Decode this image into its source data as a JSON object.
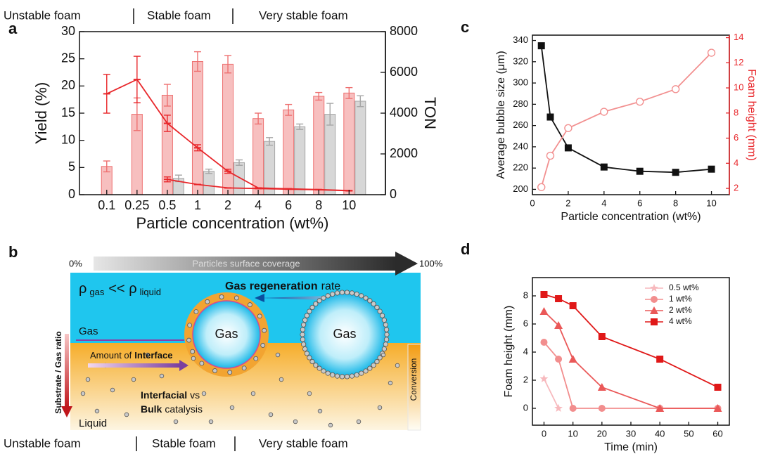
{
  "panel_labels": [
    "a",
    "b",
    "c",
    "d"
  ],
  "chart_data": [
    {
      "type": "bar_line",
      "annotations": [
        "Unstable foam",
        "Stable foam",
        "Very stable foam"
      ],
      "x_label": "Particle concentration (wt%)",
      "y_label": "Yield (%)",
      "y2_label": "TON",
      "categories": [
        "0.1",
        "0.25",
        "0.5",
        "1",
        "2",
        "4",
        "6",
        "8",
        "10"
      ],
      "ylim": [
        0,
        30
      ],
      "yticks": [
        0,
        5,
        10,
        15,
        20,
        25,
        30
      ],
      "y2lim": [
        0,
        8000
      ],
      "y2ticks": [
        0,
        2000,
        4000,
        6000,
        8000
      ],
      "series": [
        {
          "kind": "bar",
          "color": "#ee7070",
          "values": [
            5.2,
            14.8,
            18.3,
            24.5,
            24,
            14,
            15.6,
            18.1,
            18.7
          ],
          "errors": [
            1,
            3,
            2,
            1.8,
            1.6,
            1,
            1,
            0.7,
            1
          ]
        },
        {
          "kind": "bar",
          "color": "#a6a6a6",
          "values": [
            null,
            null,
            3.0,
            4.3,
            5.9,
            9.8,
            12.5,
            14.8,
            17.2
          ],
          "errors": [
            null,
            null,
            0.6,
            0.4,
            0.5,
            0.7,
            0.5,
            2,
            1
          ]
        },
        {
          "kind": "line",
          "axis": "y2",
          "color": "#e8262a",
          "marker": "dash",
          "values": [
            4950,
            5650,
            3500,
            2300,
            1150,
            330,
            290,
            250,
            200
          ],
          "errors": [
            950,
            1140,
            400,
            150,
            100,
            null,
            null,
            null,
            null
          ]
        },
        {
          "kind": "line",
          "axis": "y2",
          "color": "#e8262a",
          "marker": "dash",
          "values": [
            null,
            null,
            750,
            500,
            330,
            300,
            270,
            240,
            190
          ],
          "errors": [
            null,
            null,
            120,
            null,
            null,
            null,
            null,
            null,
            null
          ]
        }
      ]
    },
    {
      "type": "line",
      "x_label": "Particle concentration (wt%)",
      "y_label": "Average bubble size (μm)",
      "y2_label": "Foam height (mm)",
      "y2_color": "#e8262a",
      "x": [
        0.5,
        1,
        2,
        4,
        6,
        8,
        10
      ],
      "xlim": [
        0,
        11
      ],
      "xticks": [
        0,
        2,
        4,
        6,
        8,
        10
      ],
      "ylim": [
        195,
        345
      ],
      "yticks": [
        200,
        220,
        240,
        260,
        280,
        300,
        320,
        340
      ],
      "y2lim": [
        1.5,
        14.2
      ],
      "y2ticks": [
        2,
        4,
        6,
        8,
        10,
        12,
        14
      ],
      "series": [
        {
          "kind": "line",
          "color": "#111111",
          "marker": "square",
          "values": [
            335,
            268,
            239,
            221,
            217,
            216,
            219
          ]
        },
        {
          "kind": "line",
          "axis": "y2",
          "color": "#f29090",
          "marker": "circle-open",
          "values": [
            2.1,
            4.6,
            6.8,
            8.1,
            8.9,
            9.9,
            12.8
          ]
        }
      ]
    },
    {
      "type": "line",
      "x_label": "Time (min)",
      "y_label": "Foam height (mm)",
      "legend": "upper right",
      "x": [
        0,
        5,
        10,
        20,
        40,
        60
      ],
      "xlim": [
        -4,
        64
      ],
      "xticks": [
        0,
        10,
        20,
        30,
        40,
        50,
        60
      ],
      "ylim": [
        -1.2,
        9.3
      ],
      "yticks": [
        0,
        2,
        4,
        6,
        8
      ],
      "series": [
        {
          "name": "0.5 wt%",
          "kind": "line",
          "color": "#f7b9bd",
          "marker": "star",
          "values": [
            2.1,
            0,
            null,
            null,
            null,
            null
          ]
        },
        {
          "name": "1 wt%",
          "kind": "line",
          "color": "#f28e8e",
          "marker": "circle",
          "values": [
            4.7,
            3.5,
            0,
            0,
            0,
            0
          ]
        },
        {
          "name": "2 wt%",
          "kind": "line",
          "color": "#ea5858",
          "marker": "triangle",
          "values": [
            6.9,
            5.9,
            3.5,
            1.5,
            0,
            0
          ]
        },
        {
          "name": "4 wt%",
          "kind": "line",
          "color": "#e01818",
          "marker": "square",
          "values": [
            8.1,
            7.8,
            7.3,
            5.1,
            3.5,
            1.5
          ]
        }
      ]
    }
  ],
  "diagram": {
    "coverage": {
      "start": "0%",
      "title": "Particles surface coverage",
      "end": "100%"
    },
    "density": {
      "rho": "ρ",
      "gas": "gas",
      "relation": "<< ρ",
      "liquid": "liquid"
    },
    "regeneration": {
      "bold": "Gas regeneration",
      "rest": "rate"
    },
    "gas_label": "Gas",
    "bubbles": [
      "Gas",
      "Gas"
    ],
    "interface": {
      "text": "Amount of",
      "bold": "Interface"
    },
    "ratio": "Substrate / Gas ratio",
    "catalysis": {
      "bold1": "Interfacial",
      "text1": "vs",
      "bold2": "Bulk",
      "text2": "catalysis"
    },
    "liquid": "Liquid",
    "conversion": "Conversion",
    "foam_stages": [
      "Unstable foam",
      "Stable foam",
      "Very stable foam"
    ]
  }
}
